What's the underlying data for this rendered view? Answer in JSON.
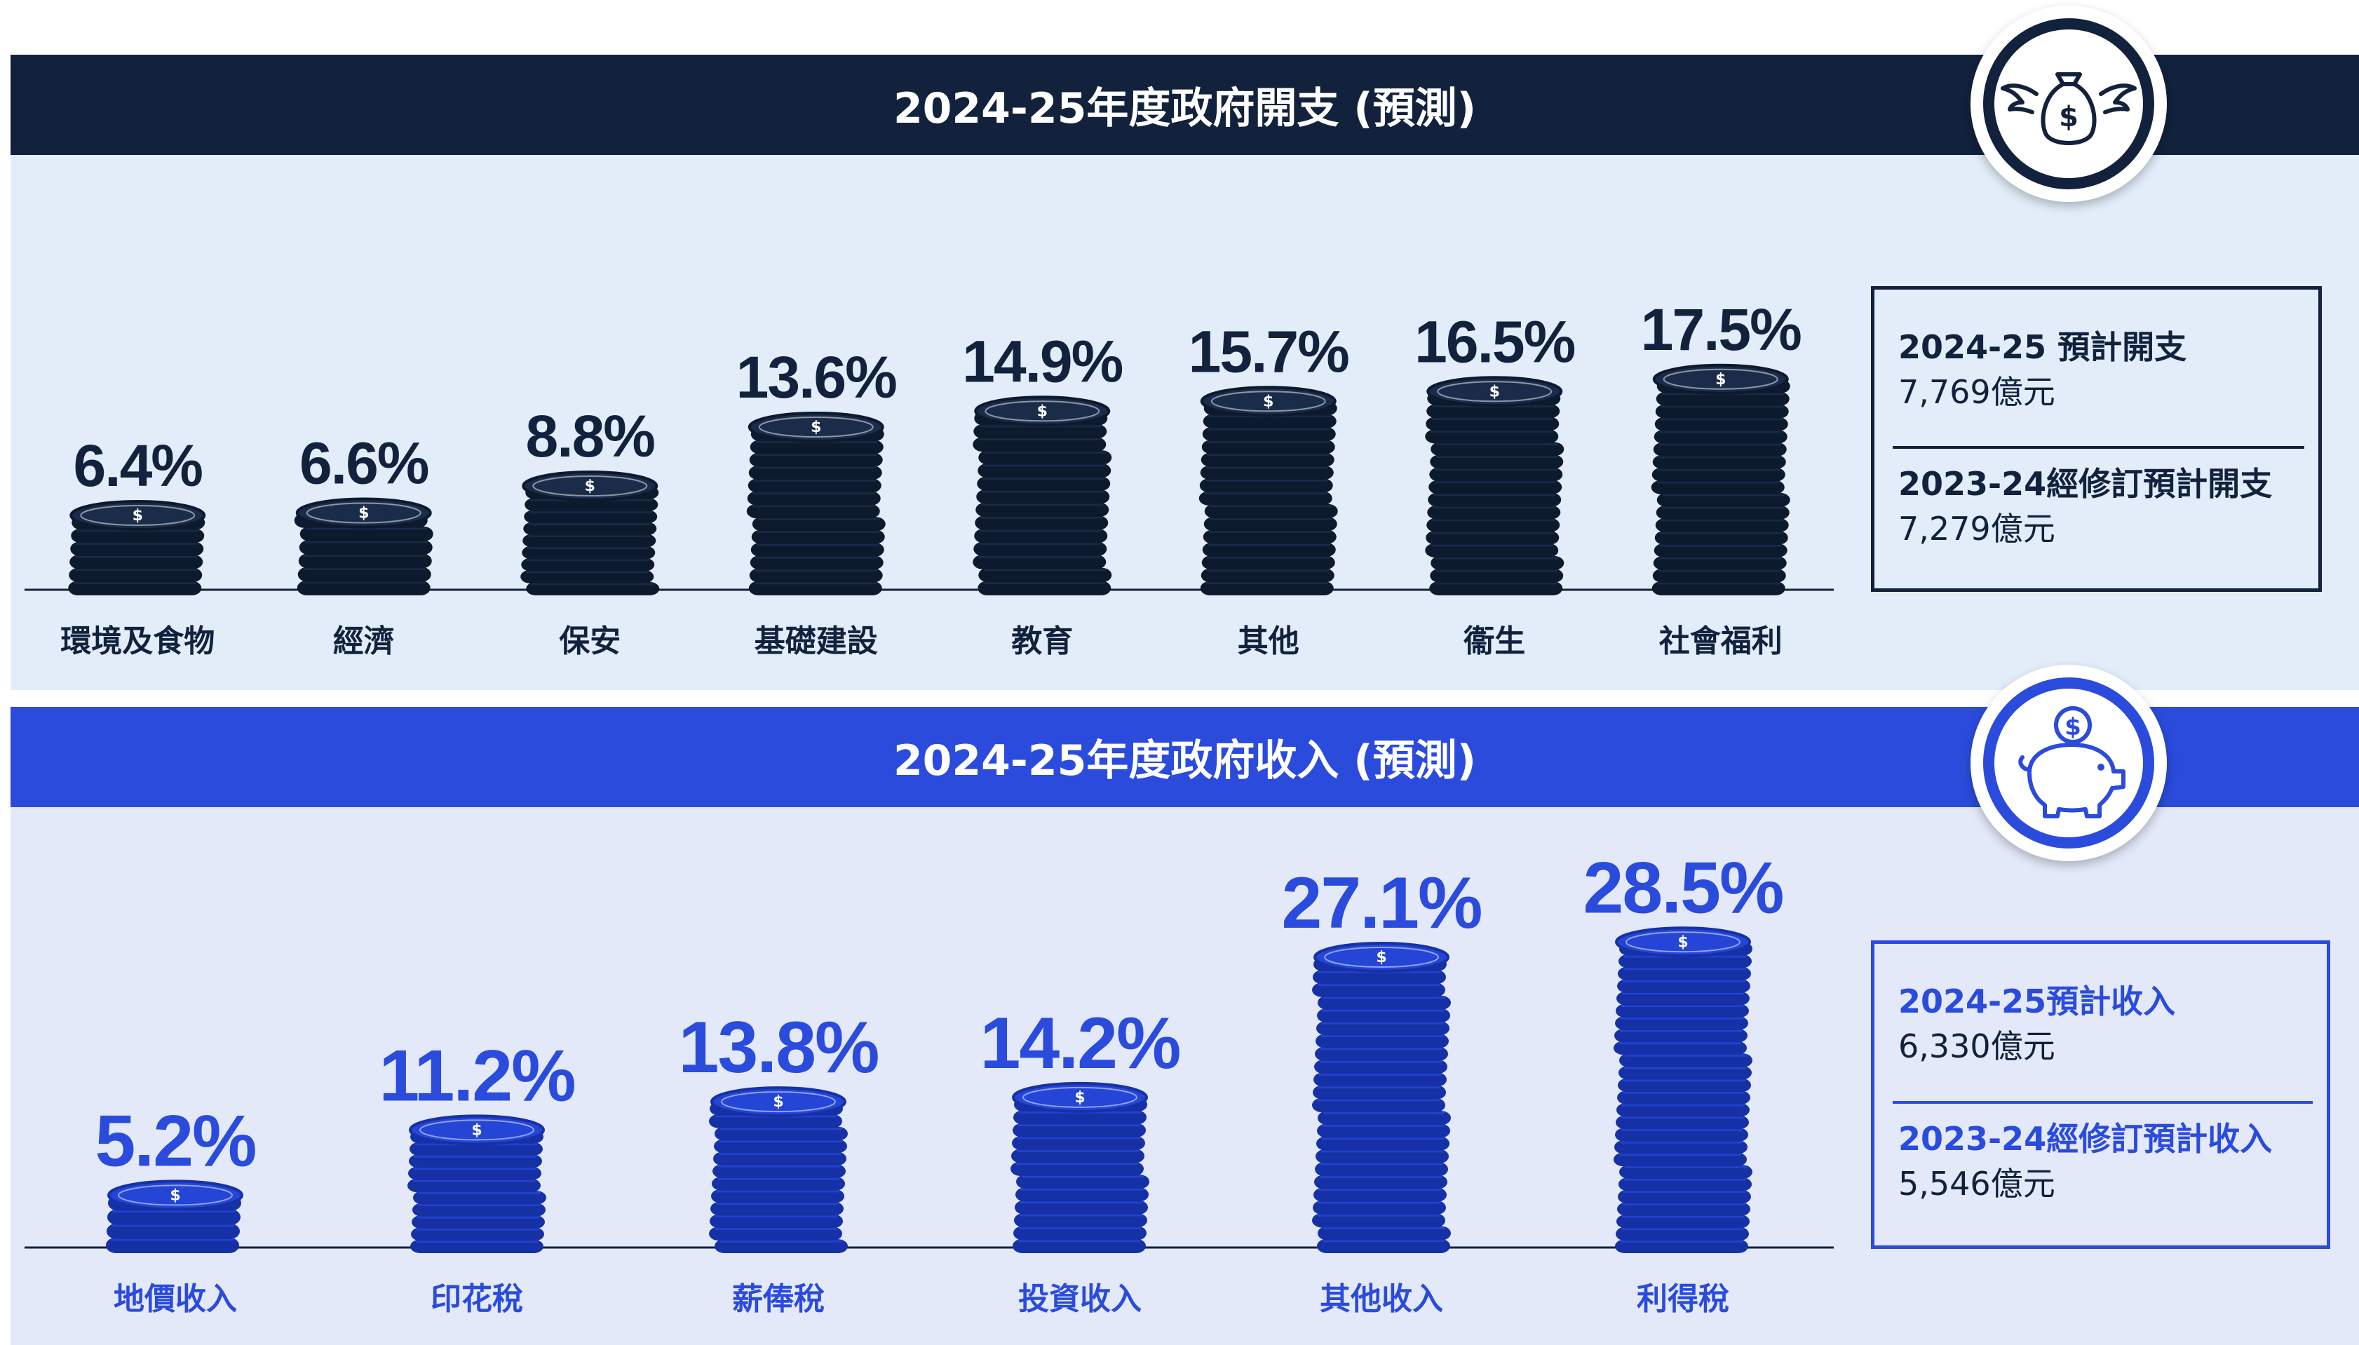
{
  "colors": {
    "expenditure_band": "#12223d",
    "expenditure_panel": "#e2edf9",
    "expenditure_coin": "#1b2c4a",
    "expenditure_coin_dark": "#0d1a2e",
    "revenue_band": "#2a4bdc",
    "revenue_panel": "#e3e9f9",
    "revenue_coin": "#2445d6",
    "revenue_coin_dark": "#1631a6",
    "coin_highlight": "#ffffff"
  },
  "expenditure": {
    "title": "2024-25年度政府開支 (預測)",
    "badge_icon": "winged-money-bag-icon",
    "legend": {
      "current_label": "2024-25 預計開支",
      "current_value": "7,769億元",
      "previous_label": "2023-24經修訂預計開支",
      "previous_value": "7,279億元"
    }
  },
  "revenue": {
    "title": "2024-25年度政府收入 (預測)",
    "badge_icon": "piggy-bank-dollar-icon",
    "legend": {
      "current_label": "2024-25預計收入",
      "current_value": "6,330億元",
      "previous_label": "2023-24經修訂預計收入",
      "previous_value": "5,546億元"
    }
  },
  "chart_data": [
    {
      "type": "bar",
      "title": "2024-25年度政府開支 (預測)",
      "categories": [
        "環境及食物",
        "經濟",
        "保安",
        "基礎建設",
        "教育",
        "其他",
        "衞生",
        "社會福利"
      ],
      "values": [
        6.4,
        6.6,
        8.8,
        13.6,
        14.9,
        15.7,
        16.5,
        17.5
      ],
      "labels": [
        "6.4%",
        "6.6%",
        "8.8%",
        "13.6%",
        "14.9%",
        "15.7%",
        "16.5%",
        "17.5%"
      ],
      "unit": "%",
      "grid": false
    },
    {
      "type": "bar",
      "title": "2024-25年度政府收入 (預測)",
      "categories": [
        "地價收入",
        "印花稅",
        "薪俸稅",
        "投資收入",
        "其他收入",
        "利得稅"
      ],
      "values": [
        5.2,
        11.2,
        13.8,
        14.2,
        27.1,
        28.5
      ],
      "labels": [
        "5.2%",
        "11.2%",
        "13.8%",
        "14.2%",
        "27.1%",
        "28.5%"
      ],
      "unit": "%",
      "grid": false
    }
  ]
}
